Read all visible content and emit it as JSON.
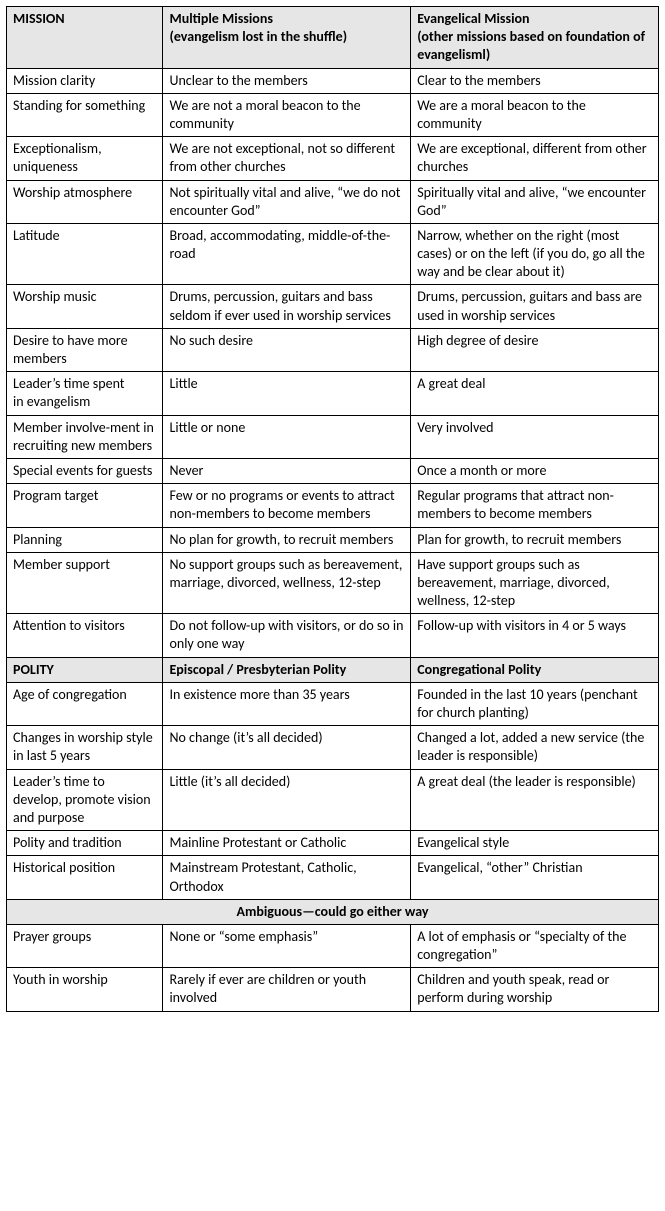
{
  "mission": {
    "header": [
      "MISSION",
      "Multiple Missions\n(evangelism lost in the shuffle)",
      "Evangelical Mission\n(other missions based on foundation of evangelisml)"
    ],
    "rows": [
      [
        "Mission clarity",
        "Unclear to the members",
        "Clear to the members"
      ],
      [
        "Standing for something",
        "We are not a moral beacon to the community",
        "We are a moral beacon to the community"
      ],
      [
        "Exceptionalism, uniqueness",
        "We are not exceptional, not so different from other churches",
        "We are exceptional, different from other churches"
      ],
      [
        "Worship atmosphere",
        "Not spiritually vital and alive, “we do not encounter God”",
        "Spiritually vital and alive, “we encounter God”"
      ],
      [
        "Latitude",
        "Broad, accommodating, middle-of-the-road",
        "Narrow, whether on the right (most cases) or on the left (if you do, go all the way and be clear about it)"
      ],
      [
        "Worship music",
        "Drums, percussion, guitars and bass seldom if ever used in worship services",
        "Drums, percussion, guitars and bass are used in worship services"
      ],
      [
        "Desire to have more\nmembers",
        "No such desire",
        "High degree of desire"
      ],
      [
        "Leader’s time spent\nin evangelism",
        "Little",
        "A great deal"
      ],
      [
        "Member involve-ment in recruiting new members",
        "Little or none",
        "Very involved"
      ],
      [
        "Special events for guests",
        "Never",
        "Once a month or more"
      ],
      [
        "Program target",
        "Few or no programs or events to attract non-members to become members",
        "Regular programs that attract non-members to become members"
      ],
      [
        "Planning",
        "No plan for growth, to recruit members",
        "Plan for growth, to recruit members"
      ],
      [
        "Member support",
        "No support groups such as bereavement, marriage, divorced, wellness, 12-step",
        "Have support groups such as bereavement, marriage, divorced, wellness, 12-step"
      ],
      [
        "Attention to visitors",
        "Do not follow-up with visitors, or do so in only one way",
        "Follow-up with visitors in 4 or 5 ways"
      ]
    ]
  },
  "polity": {
    "header": [
      "POLITY",
      "Episcopal / Presbyterian Polity",
      "Congregational Polity"
    ],
    "rows": [
      [
        "Age of congregation",
        "In existence more than 35 years",
        "Founded in the last 10 years (penchant for church planting)"
      ],
      [
        "Changes in worship style in last 5 years",
        "No change (it’s all decided)",
        "Changed a lot, added a new service (the leader is responsible)"
      ],
      [
        "Leader’s time to develop, promote vision and purpose",
        "Little (it’s all decided)",
        "A great deal (the leader is responsible)"
      ],
      [
        "Polity and tradition",
        "Mainline Protestant or Catholic",
        "Evangelical style"
      ],
      [
        "Historical position",
        "Mainstream Protestant, Catholic, Orthodox",
        "Evangelical, “other” Christian"
      ]
    ]
  },
  "ambiguous": {
    "header": "Ambiguous—could go either way",
    "rows": [
      [
        "Prayer groups",
        "None or “some emphasis”",
        "A lot of emphasis or “specialty of the congregation”"
      ],
      [
        "Youth in worship",
        "Rarely if ever are children or youth involved",
        "Children and youth speak, read or perform during worship"
      ]
    ]
  }
}
